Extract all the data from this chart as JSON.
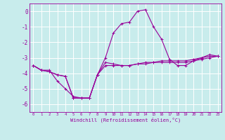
{
  "xlabel": "Windchill (Refroidissement éolien,°C)",
  "background_color": "#c8ecec",
  "grid_color": "#ffffff",
  "line_color": "#990099",
  "x_values": [
    0,
    1,
    2,
    3,
    4,
    5,
    6,
    7,
    8,
    9,
    10,
    11,
    12,
    13,
    14,
    15,
    16,
    17,
    18,
    19,
    20,
    21,
    22,
    23
  ],
  "line1": [
    -3.5,
    -3.8,
    -3.8,
    -4.5,
    -5.0,
    -5.5,
    -5.6,
    -5.6,
    -4.1,
    -3.0,
    -1.4,
    -0.8,
    -0.7,
    0.0,
    0.1,
    -1.0,
    -1.8,
    -3.1,
    -3.5,
    -3.5,
    -3.2,
    -3.0,
    -2.8,
    -2.9
  ],
  "line2": [
    -3.5,
    -3.8,
    -3.9,
    -4.1,
    -4.2,
    -5.6,
    -5.6,
    -5.6,
    -4.1,
    -3.3,
    -3.4,
    -3.5,
    -3.5,
    -3.4,
    -3.4,
    -3.3,
    -3.3,
    -3.3,
    -3.3,
    -3.3,
    -3.2,
    -3.1,
    -3.0,
    -2.9
  ],
  "line3": [
    -3.5,
    -3.8,
    -3.9,
    -4.1,
    -4.2,
    -5.6,
    -5.6,
    -5.6,
    -4.1,
    -3.5,
    -3.5,
    -3.5,
    -3.5,
    -3.4,
    -3.3,
    -3.3,
    -3.2,
    -3.2,
    -3.2,
    -3.2,
    -3.1,
    -3.0,
    -2.9,
    -2.9
  ],
  "ylim": [
    -6.5,
    0.5
  ],
  "xlim": [
    -0.5,
    23.5
  ],
  "yticks": [
    0,
    -1,
    -2,
    -3,
    -4,
    -5,
    -6
  ],
  "xticks": [
    0,
    1,
    2,
    3,
    4,
    5,
    6,
    7,
    8,
    9,
    10,
    11,
    12,
    13,
    14,
    15,
    16,
    17,
    18,
    19,
    20,
    21,
    22,
    23
  ],
  "figsize": [
    3.2,
    2.0
  ],
  "dpi": 100
}
